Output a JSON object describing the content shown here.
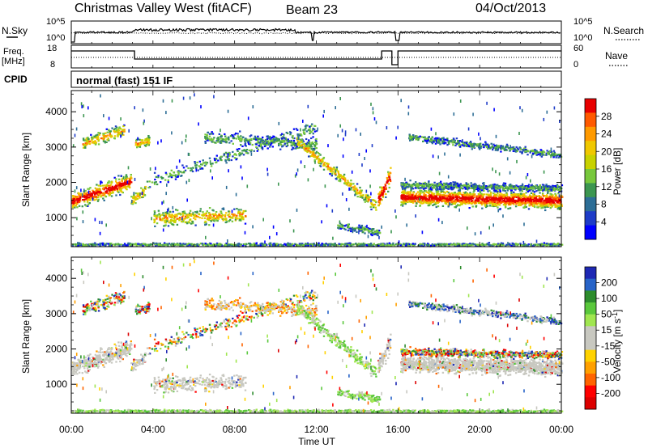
{
  "header": {
    "title": "Christmas Valley West (fitACF)",
    "beam": "Beam 23",
    "date": "04/Oct/2013"
  },
  "param_panels": {
    "nsky_label": "N.Sky",
    "nsearch_label": "N.Search",
    "noise_ticks": [
      "10^5",
      "10^0"
    ],
    "freq_label_1": "Freq.",
    "freq_label_2": "[MHz]",
    "freq_ticks": [
      "18",
      "8"
    ],
    "nave_label": "Nave",
    "nave_ticks": [
      "60",
      "0"
    ],
    "cpid_label": "CPID",
    "cpid_value": "normal (fast) 151 IF"
  },
  "chart_data": [
    {
      "type": "heatmap",
      "name_printed": "Power [dB]",
      "xlabel": "",
      "ylabel": "Slant Range [km]",
      "x_ticks": [
        "00:00",
        "04:00",
        "08:00",
        "12:00",
        "16:00",
        "20:00",
        "00:00"
      ],
      "y_ticks": [
        1000,
        2000,
        3000,
        4000
      ],
      "ylim": [
        180,
        4600
      ],
      "xlim_hours": [
        0,
        24
      ],
      "colorbar_label": "Power [dB]",
      "colorbar_ticks": [
        "28",
        "24",
        "20",
        "16",
        "12",
        "8",
        "4"
      ],
      "colorbar_colors": [
        "#e80000",
        "#ff5a00",
        "#ff9a00",
        "#f0c800",
        "#c8d200",
        "#78c83c",
        "#3c9650",
        "#2d6e96",
        "#1e3cc8",
        "#0000ff"
      ]
    },
    {
      "type": "heatmap",
      "xlabel": "Time UT",
      "ylabel": "Slant Range [km]",
      "x_ticks": [
        "00:00",
        "04:00",
        "08:00",
        "12:00",
        "16:00",
        "20:00",
        "00:00"
      ],
      "y_ticks": [
        1000,
        2000,
        3000,
        4000
      ],
      "ylim": [
        180,
        4600
      ],
      "xlim_hours": [
        0,
        24
      ],
      "colorbar_label": "Velocity [m s^-1]",
      "colorbar_ticks": [
        "200",
        "100",
        "50",
        "15",
        "-15",
        "-50",
        "-100",
        "-200"
      ],
      "colorbar_colors": [
        "#1e28b4",
        "#2864c8",
        "#2d8c2d",
        "#5ac83c",
        "#a0e650",
        "#c8c8c0",
        "#c8c8c0",
        "#ffd200",
        "#ffa000",
        "#ff6400",
        "#ff0000",
        "#dc0000"
      ]
    }
  ]
}
